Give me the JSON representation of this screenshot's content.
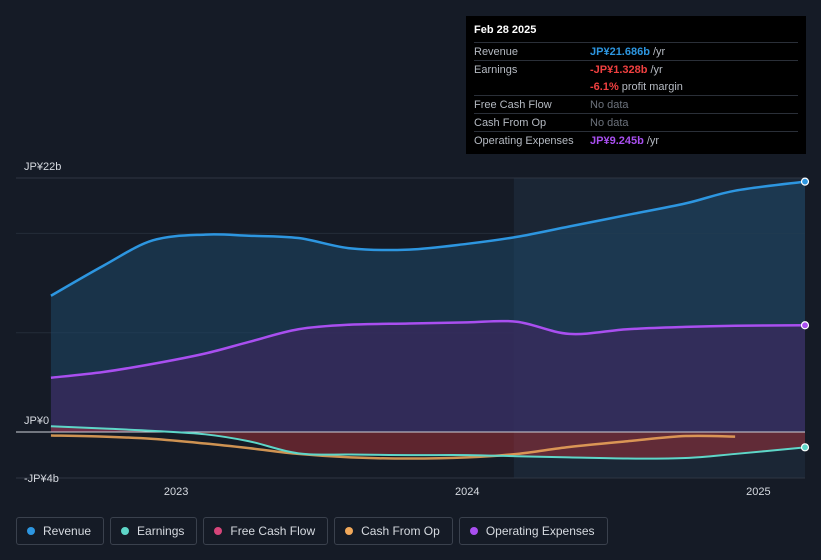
{
  "tooltip": {
    "date": "Feb 28 2025",
    "rows": [
      {
        "label": "Revenue",
        "value": "JP¥21.686b",
        "unit": "/yr",
        "color": "#2d96e0"
      },
      {
        "label": "Earnings",
        "value": "-JP¥1.328b",
        "unit": "/yr",
        "color": "#f04040"
      },
      {
        "label": "",
        "value": "-6.1%",
        "unit": "profit margin",
        "color": "#f04040"
      },
      {
        "label": "Free Cash Flow",
        "value": "No data",
        "unit": "",
        "color": "#6c727c"
      },
      {
        "label": "Cash From Op",
        "value": "No data",
        "unit": "",
        "color": "#6c727c"
      },
      {
        "label": "Operating Expenses",
        "value": "JP¥9.245b",
        "unit": "/yr",
        "color": "#a94ff0"
      }
    ]
  },
  "legend": [
    {
      "label": "Revenue",
      "color": "#2d96e0"
    },
    {
      "label": "Earnings",
      "color": "#5ed6c8"
    },
    {
      "label": "Free Cash Flow",
      "color": "#d6457a"
    },
    {
      "label": "Cash From Op",
      "color": "#f0a85a"
    },
    {
      "label": "Operating Expenses",
      "color": "#a94ff0"
    }
  ],
  "chart_data": {
    "type": "area",
    "title": "",
    "ylim": [
      -4,
      22
    ],
    "y_tick_labels": [
      "JP¥22b",
      "JP¥0",
      "-JP¥4b"
    ],
    "y_ticks": [
      22,
      0,
      -4
    ],
    "xlim": [
      2022.45,
      2025.16
    ],
    "x_tick_labels": [
      "2023",
      "2024",
      "2025"
    ],
    "x_ticks": [
      2023.0,
      2024.0,
      2025.0
    ],
    "highlight_start": 2024.16,
    "unit": "JP¥ billions",
    "series": [
      {
        "name": "Revenue",
        "color": "#2d96e0",
        "x": [
          2022.57,
          2022.75,
          2022.92,
          2023.1,
          2023.25,
          2023.42,
          2023.6,
          2023.8,
          2024.0,
          2024.17,
          2024.35,
          2024.55,
          2024.75,
          2024.92,
          2025.16
        ],
        "y": [
          11.8,
          14.4,
          16.6,
          17.1,
          17.0,
          16.8,
          15.9,
          15.8,
          16.3,
          16.9,
          17.8,
          18.8,
          19.8,
          20.9,
          21.686
        ]
      },
      {
        "name": "Operating Expenses",
        "color": "#a94ff0",
        "x": [
          2022.57,
          2022.75,
          2022.92,
          2023.1,
          2023.25,
          2023.42,
          2023.6,
          2023.8,
          2024.0,
          2024.17,
          2024.35,
          2024.55,
          2024.75,
          2024.92,
          2025.16
        ],
        "y": [
          4.7,
          5.2,
          5.9,
          6.8,
          7.8,
          8.9,
          9.3,
          9.4,
          9.5,
          9.55,
          8.5,
          8.9,
          9.1,
          9.2,
          9.245
        ]
      },
      {
        "name": "Earnings",
        "color": "#5ed6c8",
        "x": [
          2022.57,
          2022.75,
          2022.92,
          2023.1,
          2023.25,
          2023.42,
          2023.6,
          2023.8,
          2024.0,
          2024.17,
          2024.35,
          2024.55,
          2024.75,
          2024.92,
          2025.16
        ],
        "y": [
          0.5,
          0.3,
          0.1,
          -0.2,
          -0.8,
          -1.85,
          -1.95,
          -2.0,
          -2.0,
          -2.1,
          -2.2,
          -2.3,
          -2.25,
          -1.9,
          -1.328
        ]
      },
      {
        "name": "Cash From Op",
        "color": "#f0a85a",
        "x": [
          2022.57,
          2022.75,
          2022.92,
          2023.1,
          2023.25,
          2023.42,
          2023.6,
          2023.8,
          2024.0,
          2024.17,
          2024.35,
          2024.55,
          2024.75,
          2024.92
        ],
        "y": [
          -0.3,
          -0.4,
          -0.6,
          -1.0,
          -1.4,
          -1.9,
          -2.2,
          -2.3,
          -2.2,
          -1.9,
          -1.3,
          -0.8,
          -0.35,
          -0.4
        ]
      }
    ]
  }
}
